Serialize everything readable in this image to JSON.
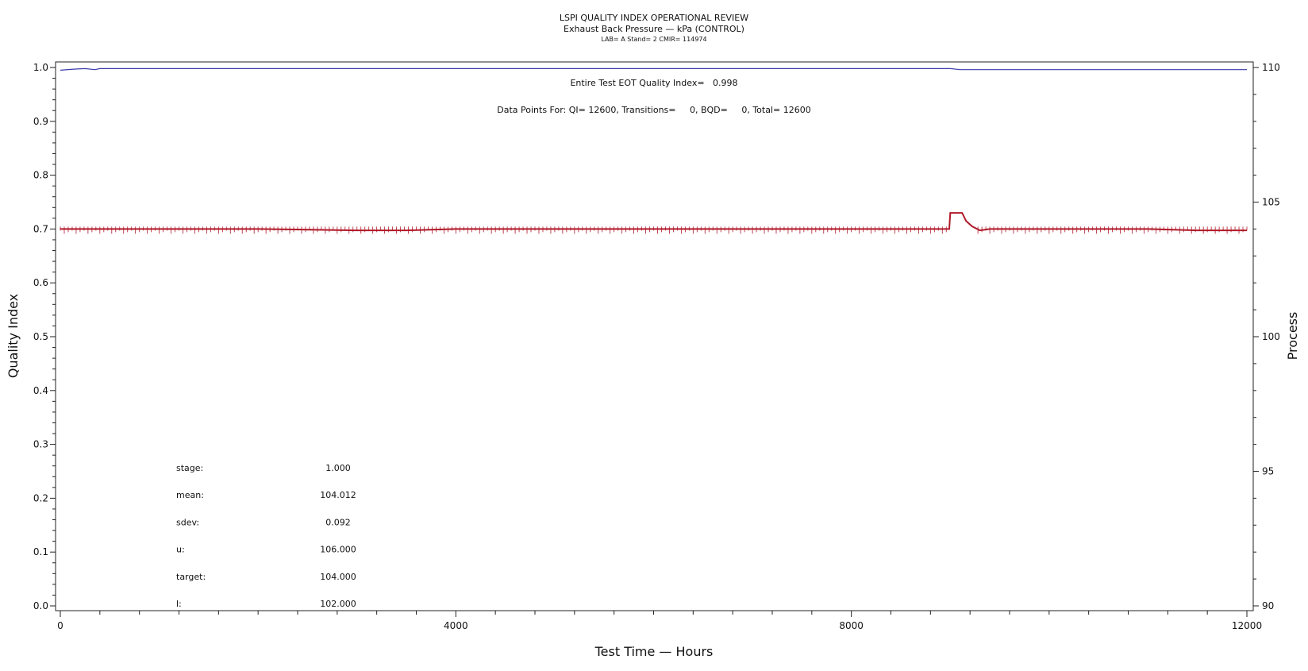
{
  "chart_data": {
    "type": "line",
    "title": "LSPI QUALITY INDEX OPERATIONAL REVIEW",
    "subtitle": "Exhaust Back Pressure — kPa (CONTROL)",
    "subtitle2": "LAB= A Stand= 2 CMIR= 114974",
    "xlabel": "Test Time — Hours",
    "ylabel_left": "Quality Index",
    "ylabel_right": "Process",
    "xlim": [
      0,
      12000
    ],
    "ylim_left": [
      0.0,
      1.0
    ],
    "ylim_right": [
      90,
      110
    ],
    "x_ticks": [
      0,
      4000,
      8000,
      12000
    ],
    "y_left_ticks": [
      "0.0",
      "0.1",
      "0.2",
      "0.3",
      "0.4",
      "0.5",
      "0.6",
      "0.7",
      "0.8",
      "0.9",
      "1.0"
    ],
    "y_right_ticks": [
      "90",
      "95",
      "100",
      "105",
      "110"
    ],
    "annotations": {
      "eot": "Entire Test EOT Quality Index=   0.998",
      "datapoints": "Data Points For: QI= 12600, Transitions=     0, BQD=     0, Total= 12600"
    },
    "stats": [
      {
        "label": "stage:",
        "value": "1.000"
      },
      {
        "label": "mean:",
        "value": "104.012"
      },
      {
        "label": "sdev:",
        "value": "0.092"
      },
      {
        "label": "u:",
        "value": "106.000"
      },
      {
        "label": "target:",
        "value": "104.000"
      },
      {
        "label": "l:",
        "value": "102.000"
      }
    ],
    "series": [
      {
        "axis": "left",
        "color": "#3a3aa8",
        "x": [
          0,
          150,
          250,
          350,
          400,
          9000,
          9100,
          12000
        ],
        "y": [
          0.995,
          0.997,
          0.998,
          0.996,
          0.998,
          0.998,
          0.996,
          0.996
        ]
      },
      {
        "axis": "right",
        "color": "#b01a2a",
        "x": [
          0,
          1000,
          2000,
          3000,
          3500,
          4000,
          5000,
          6000,
          7000,
          8000,
          8800,
          8990,
          9000,
          9120,
          9160,
          9220,
          9300,
          9400,
          10000,
          11000,
          11500,
          12000
        ],
        "y": [
          104.0,
          104.0,
          104.0,
          103.95,
          103.95,
          104.0,
          104.0,
          104.0,
          104.0,
          104.0,
          104.0,
          104.0,
          104.6,
          104.6,
          104.3,
          104.1,
          103.95,
          104.0,
          104.0,
          104.0,
          103.95,
          103.95
        ]
      }
    ]
  }
}
